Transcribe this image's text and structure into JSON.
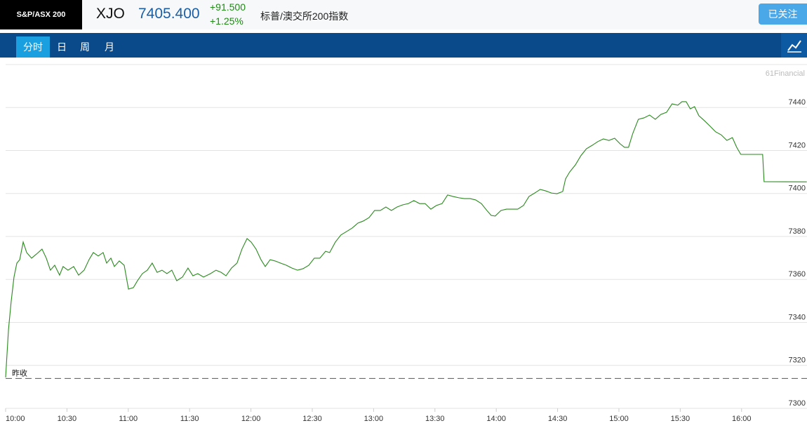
{
  "header": {
    "logo": "S&P/ASX 200",
    "symbol": "XJO",
    "price": "7405.400",
    "change": "+91.500",
    "change_percent": "+1.25%",
    "name": "标普/澳交所200指数",
    "follow_button": "已关注"
  },
  "tabs": [
    "分时",
    "日",
    "周",
    "月"
  ],
  "chart_data": {
    "type": "line",
    "watermark": "61Financial",
    "x": [
      0,
      1.4,
      2.7,
      4.1,
      5.5,
      6.9,
      8.6,
      10.3,
      12.7,
      15.1,
      17.8,
      19.9,
      21.9,
      24.0,
      26.4,
      28.1,
      30.5,
      33.3,
      35.7,
      38.4,
      40.8,
      42.9,
      45.3,
      47.7,
      49.4,
      51.5,
      53.2,
      55.6,
      58.0,
      60.1,
      62.5,
      64.5,
      66.9,
      69.3,
      71.7,
      74.1,
      76.5,
      78.9,
      81.3,
      83.7,
      86.5,
      89.2,
      91.6,
      94.0,
      96.8,
      100.2,
      102.9,
      105.4,
      107.8,
      110.5,
      113.2,
      115.6,
      118.1,
      120.1,
      122.5,
      124.9,
      127.0,
      129.4,
      131.8,
      134.5,
      137.3,
      140.0,
      142.8,
      145.5,
      148.3,
      151.0,
      153.7,
      156.5,
      158.5,
      161.3,
      164.0,
      166.8,
      169.5,
      172.3,
      175.0,
      177.8,
      180.5,
      183.3,
      186.0,
      188.7,
      191.5,
      194.2,
      197.0,
      199.7,
      202.5,
      205.2,
      208.0,
      210.7,
      213.5,
      216.2,
      218.9,
      221.7,
      224.4,
      227.2,
      229.9,
      232.7,
      235.4,
      237.5,
      239.5,
      242.3,
      245.0,
      247.8,
      250.5,
      253.3,
      256.0,
      258.8,
      261.5,
      264.2,
      267.0,
      269.7,
      272.5,
      273.9,
      275.9,
      278.7,
      281.4,
      284.1,
      286.9,
      289.6,
      292.4,
      295.1,
      297.9,
      300.6,
      302.7,
      304.7,
      306.8,
      309.5,
      312.3,
      315.0,
      317.8,
      320.5,
      323.3,
      326.0,
      328.8,
      330.8,
      332.9,
      334.9,
      337.0,
      339.1,
      341.8,
      344.6,
      347.3,
      350.0,
      352.8,
      355.5,
      357.6,
      359.6,
      370.3,
      371.0,
      391.9
    ],
    "series": [
      {
        "color": "#2a8a1e",
        "values": [
          7314.4,
          7336.6,
          7349.6,
          7361.1,
          7367.6,
          7369.2,
          7377.4,
          7372.5,
          7369.9,
          7371.8,
          7374.1,
          7369.9,
          7364.3,
          7366.6,
          7362.0,
          7366.0,
          7364.3,
          7366.0,
          7362.0,
          7364.3,
          7369.2,
          7372.5,
          7370.9,
          7372.5,
          7367.6,
          7369.9,
          7366.0,
          7368.6,
          7366.6,
          7355.5,
          7356.2,
          7359.4,
          7362.7,
          7364.3,
          7367.6,
          7363.3,
          7364.3,
          7362.7,
          7364.3,
          7359.4,
          7361.1,
          7365.3,
          7361.7,
          7362.7,
          7361.1,
          7362.7,
          7364.3,
          7363.3,
          7361.7,
          7365.3,
          7367.6,
          7374.1,
          7379.0,
          7377.4,
          7374.1,
          7369.2,
          7366.0,
          7369.2,
          7368.6,
          7367.6,
          7366.6,
          7365.3,
          7364.3,
          7365.0,
          7366.6,
          7369.9,
          7369.9,
          7373.1,
          7372.5,
          7377.4,
          7380.7,
          7382.3,
          7383.9,
          7386.2,
          7387.2,
          7388.8,
          7392.1,
          7392.1,
          7393.7,
          7392.1,
          7393.7,
          7394.7,
          7395.3,
          7396.7,
          7395.3,
          7395.3,
          7392.7,
          7394.4,
          7395.3,
          7399.3,
          7398.6,
          7398.0,
          7397.6,
          7397.6,
          7397.0,
          7395.3,
          7392.1,
          7389.8,
          7389.5,
          7392.1,
          7392.7,
          7392.7,
          7392.7,
          7394.4,
          7398.6,
          7400.2,
          7401.9,
          7401.2,
          7400.2,
          7399.9,
          7400.9,
          7406.8,
          7410.0,
          7413.3,
          7417.6,
          7420.8,
          7422.4,
          7424.1,
          7425.4,
          7424.7,
          7425.7,
          7423.1,
          7421.5,
          7421.5,
          7428.0,
          7434.5,
          7435.2,
          7436.5,
          7434.5,
          7436.8,
          7437.8,
          7441.7,
          7441.1,
          7442.7,
          7442.7,
          7439.4,
          7440.4,
          7436.2,
          7433.9,
          7431.3,
          7428.7,
          7427.3,
          7424.7,
          7426.0,
          7421.5,
          7418.2,
          7418.2,
          7405.5,
          7405.4
        ]
      }
    ],
    "reference_line": {
      "label": "昨收",
      "value": 7313.9
    },
    "xlim": [
      0,
      392
    ],
    "xticks": [
      {
        "value": 0,
        "label": "10:00"
      },
      {
        "value": 30,
        "label": "10:30"
      },
      {
        "value": 60,
        "label": "11:00"
      },
      {
        "value": 90,
        "label": "11:30"
      },
      {
        "value": 120,
        "label": "12:00"
      },
      {
        "value": 150,
        "label": "12:30"
      },
      {
        "value": 180,
        "label": "13:00"
      },
      {
        "value": 210,
        "label": "13:30"
      },
      {
        "value": 240,
        "label": "14:00"
      },
      {
        "value": 270,
        "label": "14:30"
      },
      {
        "value": 300,
        "label": "15:00"
      },
      {
        "value": 330,
        "label": "15:30"
      },
      {
        "value": 360,
        "label": "16:00"
      }
    ],
    "ylim": [
      7300,
      7460
    ],
    "yticks": [
      7300,
      7320,
      7340,
      7360,
      7380,
      7400,
      7420,
      7440
    ],
    "grid": true
  }
}
